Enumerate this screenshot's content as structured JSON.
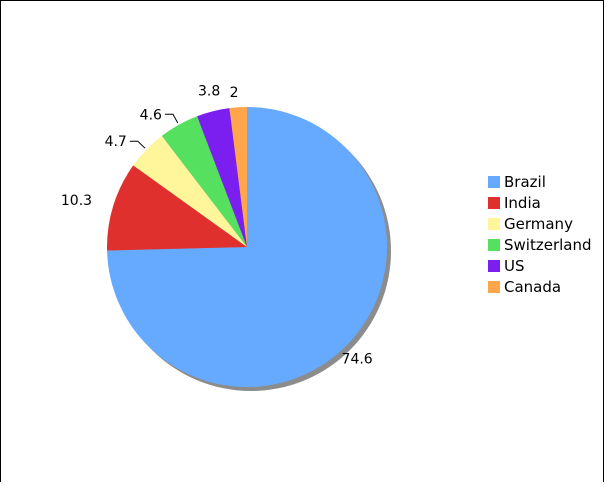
{
  "chart_data": {
    "type": "pie",
    "categories": [
      "Brazil",
      "India",
      "Germany",
      "Switzerland",
      "US",
      "Canada"
    ],
    "values": [
      74.6,
      10.3,
      4.7,
      4.6,
      3.8,
      2
    ],
    "colors": [
      "#66aaff",
      "#e0302e",
      "#fff59a",
      "#55e060",
      "#7a1ff0",
      "#ffa64d"
    ],
    "legend_position": "right",
    "start_angle_deg": 0,
    "direction": "clockwise",
    "shadow": true
  }
}
